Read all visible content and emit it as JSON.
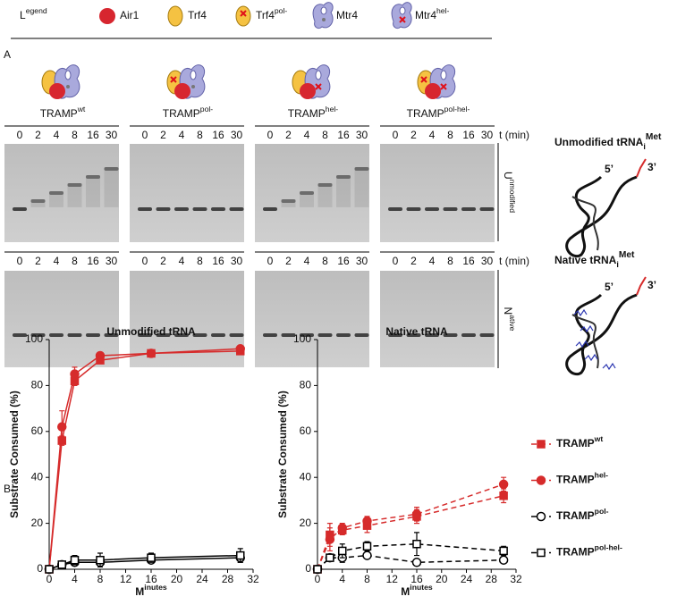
{
  "legend": {
    "title": "Legend",
    "items": [
      "Air1",
      "Trf4",
      "Trf4pol-",
      "Mtr4",
      "Mtr4hel-"
    ]
  },
  "panel_labels": [
    "A",
    "B"
  ],
  "gels": {
    "complexes": [
      "TRAMPwt",
      "TRAMPpol-",
      "TRAMPhel-",
      "TRAMPpol-hel-"
    ],
    "lanes": [
      0,
      2,
      4,
      8,
      16,
      30
    ],
    "time_label": "t (min)",
    "rows": [
      "Unmodified",
      "Native"
    ]
  },
  "structures": [
    {
      "title": "Unmodified tRNA",
      "sub": "i",
      "sup": "Met",
      "five": "5’",
      "three": "3’"
    },
    {
      "title": "Native tRNA",
      "sub": "i",
      "sup": "Met",
      "five": "5’",
      "three": "3’"
    }
  ],
  "chart_data": [
    {
      "type": "line",
      "title": "Unmodified tRNA",
      "xlabel": "Minutes",
      "ylabel": "Substrate Consumed (%)",
      "x": [
        0,
        2,
        4,
        8,
        16,
        30
      ],
      "xlim": [
        0,
        32
      ],
      "xticks": [
        0,
        4,
        8,
        12,
        16,
        20,
        24,
        28,
        32
      ],
      "ylim": [
        0,
        100
      ],
      "yticks": [
        0,
        20,
        40,
        60,
        80,
        100
      ],
      "series": [
        {
          "name": "TRAMPwt",
          "color": "#d62b2b",
          "marker": "square",
          "filled": true,
          "dashed": false,
          "values": [
            0,
            56,
            82,
            91,
            94,
            95
          ],
          "errors": [
            0,
            2,
            2,
            1,
            1,
            1
          ]
        },
        {
          "name": "TRAMPhel-",
          "color": "#d62b2b",
          "marker": "circle",
          "filled": true,
          "dashed": false,
          "values": [
            0,
            62,
            85,
            93,
            94,
            96
          ],
          "errors": [
            0,
            7,
            3,
            1,
            1,
            1
          ]
        },
        {
          "name": "TRAMPpol-",
          "color": "#000000",
          "marker": "circle",
          "filled": false,
          "dashed": false,
          "values": [
            0,
            2,
            3,
            3,
            4,
            5
          ],
          "errors": [
            0,
            1,
            1,
            1,
            1,
            2
          ]
        },
        {
          "name": "TRAMPpol-hel-",
          "color": "#000000",
          "marker": "square",
          "filled": false,
          "dashed": false,
          "values": [
            0,
            2,
            4,
            4,
            5,
            6
          ],
          "errors": [
            0,
            1,
            2,
            3,
            2,
            3
          ]
        }
      ]
    },
    {
      "type": "line",
      "title": "Native tRNA",
      "xlabel": "Minutes",
      "ylabel": "Substrate Consumed (%)",
      "legend": "right",
      "x": [
        0,
        2,
        4,
        8,
        16,
        30
      ],
      "xlim": [
        0,
        32
      ],
      "xticks": [
        0,
        4,
        8,
        12,
        16,
        20,
        24,
        28,
        32
      ],
      "ylim": [
        0,
        100
      ],
      "yticks": [
        0,
        20,
        40,
        60,
        80,
        100
      ],
      "series": [
        {
          "name": "TRAMPwt",
          "color": "#d62b2b",
          "marker": "square",
          "filled": true,
          "dashed": true,
          "values": [
            0,
            15,
            17,
            19,
            23,
            32
          ],
          "errors": [
            0,
            5,
            2,
            3,
            3,
            3
          ]
        },
        {
          "name": "TRAMPhel-",
          "color": "#d62b2b",
          "marker": "circle",
          "filled": true,
          "dashed": true,
          "values": [
            0,
            13,
            18,
            21,
            24,
            37
          ],
          "errors": [
            0,
            5,
            2,
            2,
            3,
            3
          ]
        },
        {
          "name": "TRAMPpol-",
          "color": "#000000",
          "marker": "circle",
          "filled": false,
          "dashed": true,
          "values": [
            0,
            5,
            5,
            6,
            3,
            4
          ],
          "errors": [
            0,
            1,
            2,
            1,
            1,
            1
          ]
        },
        {
          "name": "TRAMPpol-hel-",
          "color": "#000000",
          "marker": "square",
          "filled": false,
          "dashed": true,
          "values": [
            0,
            5,
            8,
            10,
            11,
            8
          ],
          "errors": [
            0,
            1,
            3,
            2,
            5,
            2
          ]
        }
      ]
    }
  ]
}
